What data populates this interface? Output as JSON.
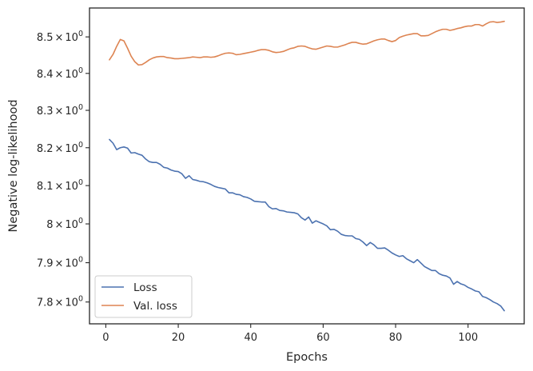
{
  "chart_data": {
    "type": "line",
    "title": "",
    "xlabel": "Epochs",
    "ylabel": "Negative log-likelihood",
    "xlim": [
      -4.5,
      115.5
    ],
    "ylim": [
      7.745,
      8.58
    ],
    "y_scale": "log",
    "grid": false,
    "legend_position": "lower-left",
    "x_ticks": [
      {
        "value": 0,
        "label": "0"
      },
      {
        "value": 20,
        "label": "20"
      },
      {
        "value": 40,
        "label": "40"
      },
      {
        "value": 60,
        "label": "60"
      },
      {
        "value": 80,
        "label": "80"
      },
      {
        "value": 100,
        "label": "100"
      }
    ],
    "y_ticks": [
      {
        "value": 7.8,
        "mantissa": "7.8",
        "times": "×",
        "base": "10",
        "exp": "0"
      },
      {
        "value": 7.9,
        "mantissa": "7.9",
        "times": "×",
        "base": "10",
        "exp": "0"
      },
      {
        "value": 8.0,
        "mantissa": "8",
        "times": "×",
        "base": "10",
        "exp": "0"
      },
      {
        "value": 8.1,
        "mantissa": "8.1",
        "times": "×",
        "base": "10",
        "exp": "0"
      },
      {
        "value": 8.2,
        "mantissa": "8.2",
        "times": "×",
        "base": "10",
        "exp": "0"
      },
      {
        "value": 8.3,
        "mantissa": "8.3",
        "times": "×",
        "base": "10",
        "exp": "0"
      },
      {
        "value": 8.4,
        "mantissa": "8.4",
        "times": "×",
        "base": "10",
        "exp": "0"
      },
      {
        "value": 8.5,
        "mantissa": "8.5",
        "times": "×",
        "base": "10",
        "exp": "0"
      }
    ],
    "x": [
      1,
      2,
      3,
      4,
      5,
      6,
      7,
      8,
      9,
      10,
      11,
      12,
      13,
      14,
      15,
      16,
      17,
      18,
      19,
      20,
      21,
      22,
      23,
      24,
      25,
      26,
      27,
      28,
      29,
      30,
      31,
      32,
      33,
      34,
      35,
      36,
      37,
      38,
      39,
      40,
      41,
      42,
      43,
      44,
      45,
      46,
      47,
      48,
      49,
      50,
      51,
      52,
      53,
      54,
      55,
      56,
      57,
      58,
      59,
      60,
      61,
      62,
      63,
      64,
      65,
      66,
      67,
      68,
      69,
      70,
      71,
      72,
      73,
      74,
      75,
      76,
      77,
      78,
      79,
      80,
      81,
      82,
      83,
      84,
      85,
      86,
      87,
      88,
      89,
      90,
      91,
      92,
      93,
      94,
      95,
      96,
      97,
      98,
      99,
      100,
      101,
      102,
      103,
      104,
      105,
      106,
      107,
      108,
      109,
      110
    ],
    "series": [
      {
        "name": "Loss",
        "color": "#4c72b0",
        "values": [
          8.222,
          8.212,
          8.195,
          8.2,
          8.202,
          8.199,
          8.186,
          8.187,
          8.183,
          8.18,
          8.17,
          8.163,
          8.161,
          8.161,
          8.156,
          8.148,
          8.146,
          8.141,
          8.138,
          8.137,
          8.131,
          8.119,
          8.126,
          8.116,
          8.114,
          8.111,
          8.11,
          8.107,
          8.103,
          8.098,
          8.095,
          8.093,
          8.091,
          8.081,
          8.081,
          8.077,
          8.076,
          8.071,
          8.069,
          8.065,
          8.059,
          8.058,
          8.057,
          8.057,
          8.045,
          8.039,
          8.04,
          8.035,
          8.034,
          8.031,
          8.03,
          8.029,
          8.026,
          8.016,
          8.01,
          8.018,
          8.002,
          8.008,
          8.004,
          8.0,
          7.995,
          7.985,
          7.986,
          7.981,
          7.973,
          7.97,
          7.969,
          7.969,
          7.962,
          7.96,
          7.953,
          7.944,
          7.952,
          7.946,
          7.937,
          7.937,
          7.938,
          7.932,
          7.925,
          7.92,
          7.916,
          7.918,
          7.91,
          7.905,
          7.9,
          7.908,
          7.899,
          7.89,
          7.885,
          7.88,
          7.88,
          7.872,
          7.868,
          7.866,
          7.861,
          7.845,
          7.852,
          7.846,
          7.843,
          7.837,
          7.833,
          7.828,
          7.826,
          7.814,
          7.811,
          7.806,
          7.8,
          7.796,
          7.79,
          7.778
        ]
      },
      {
        "name": "Val. loss",
        "color": "#dd8452",
        "values": [
          8.437,
          8.452,
          8.474,
          8.493,
          8.489,
          8.469,
          8.447,
          8.432,
          8.423,
          8.424,
          8.43,
          8.437,
          8.442,
          8.445,
          8.446,
          8.446,
          8.443,
          8.442,
          8.44,
          8.44,
          8.441,
          8.442,
          8.443,
          8.445,
          8.444,
          8.443,
          8.445,
          8.445,
          8.444,
          8.445,
          8.448,
          8.452,
          8.455,
          8.456,
          8.455,
          8.451,
          8.452,
          8.454,
          8.456,
          8.458,
          8.46,
          8.463,
          8.465,
          8.465,
          8.463,
          8.459,
          8.457,
          8.458,
          8.46,
          8.464,
          8.468,
          8.47,
          8.474,
          8.475,
          8.474,
          8.47,
          8.467,
          8.466,
          8.469,
          8.472,
          8.475,
          8.474,
          8.472,
          8.472,
          8.475,
          8.478,
          8.482,
          8.485,
          8.485,
          8.482,
          8.48,
          8.481,
          8.485,
          8.489,
          8.492,
          8.494,
          8.494,
          8.49,
          8.487,
          8.49,
          8.498,
          8.502,
          8.505,
          8.507,
          8.509,
          8.509,
          8.503,
          8.503,
          8.504,
          8.509,
          8.514,
          8.518,
          8.521,
          8.521,
          8.518,
          8.52,
          8.523,
          8.525,
          8.528,
          8.53,
          8.53,
          8.534,
          8.534,
          8.53,
          8.536,
          8.541,
          8.542,
          8.54,
          8.541,
          8.543
        ]
      }
    ]
  }
}
